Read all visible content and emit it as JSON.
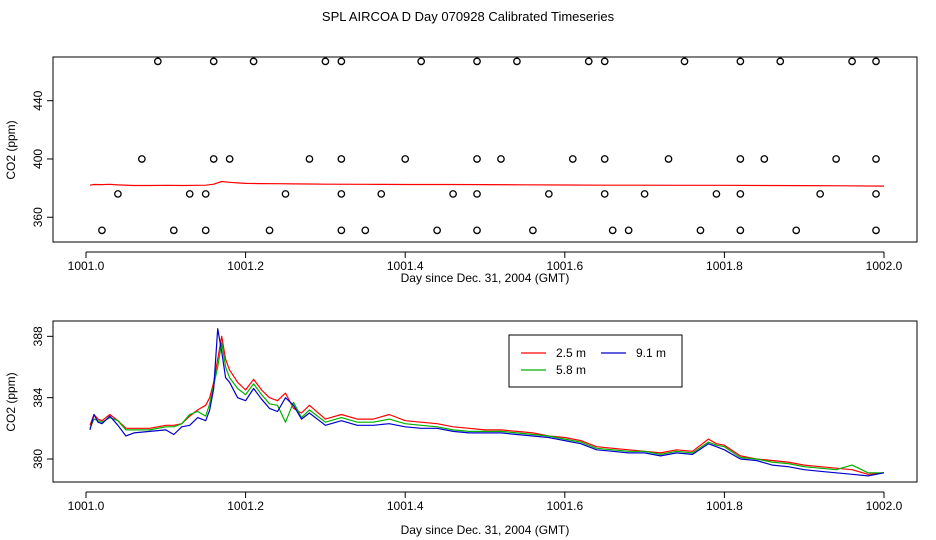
{
  "chart_data": [
    {
      "type": "scatter",
      "title": "SPL AIRCOA D  Day 070928  Calibrated Timeseries",
      "xlabel": "Day since Dec. 31, 2004 (GMT)",
      "ylabel": "CO2 (ppm)",
      "xlim": [
        1001.0,
        1002.0
      ],
      "ylim": [
        343,
        470
      ],
      "xticks": [
        1001.0,
        1001.2,
        1001.4,
        1001.6,
        1001.8,
        1002.0
      ],
      "xtick_labels": [
        "1001.0",
        "1001.2",
        "1001.4",
        "1001.6",
        "1001.8",
        "1002.0"
      ],
      "yticks": [
        360,
        400,
        440
      ],
      "ytick_labels": [
        "360",
        "400",
        "440"
      ],
      "points": [
        {
          "x": 1001.09,
          "y": 467
        },
        {
          "x": 1001.16,
          "y": 467
        },
        {
          "x": 1001.21,
          "y": 467
        },
        {
          "x": 1001.3,
          "y": 467
        },
        {
          "x": 1001.32,
          "y": 467
        },
        {
          "x": 1001.42,
          "y": 467
        },
        {
          "x": 1001.49,
          "y": 467
        },
        {
          "x": 1001.54,
          "y": 467
        },
        {
          "x": 1001.63,
          "y": 467
        },
        {
          "x": 1001.65,
          "y": 467
        },
        {
          "x": 1001.75,
          "y": 467
        },
        {
          "x": 1001.82,
          "y": 467
        },
        {
          "x": 1001.87,
          "y": 467
        },
        {
          "x": 1001.96,
          "y": 467
        },
        {
          "x": 1001.99,
          "y": 467
        },
        {
          "x": 1001.07,
          "y": 400
        },
        {
          "x": 1001.16,
          "y": 400
        },
        {
          "x": 1001.18,
          "y": 400
        },
        {
          "x": 1001.28,
          "y": 400
        },
        {
          "x": 1001.32,
          "y": 400
        },
        {
          "x": 1001.4,
          "y": 400
        },
        {
          "x": 1001.49,
          "y": 400
        },
        {
          "x": 1001.52,
          "y": 400
        },
        {
          "x": 1001.61,
          "y": 400
        },
        {
          "x": 1001.65,
          "y": 400
        },
        {
          "x": 1001.73,
          "y": 400
        },
        {
          "x": 1001.82,
          "y": 400
        },
        {
          "x": 1001.85,
          "y": 400
        },
        {
          "x": 1001.94,
          "y": 400
        },
        {
          "x": 1001.99,
          "y": 400
        },
        {
          "x": 1001.04,
          "y": 376
        },
        {
          "x": 1001.13,
          "y": 376
        },
        {
          "x": 1001.15,
          "y": 376
        },
        {
          "x": 1001.25,
          "y": 376
        },
        {
          "x": 1001.32,
          "y": 376
        },
        {
          "x": 1001.37,
          "y": 376
        },
        {
          "x": 1001.46,
          "y": 376
        },
        {
          "x": 1001.49,
          "y": 376
        },
        {
          "x": 1001.58,
          "y": 376
        },
        {
          "x": 1001.65,
          "y": 376
        },
        {
          "x": 1001.7,
          "y": 376
        },
        {
          "x": 1001.79,
          "y": 376
        },
        {
          "x": 1001.82,
          "y": 376
        },
        {
          "x": 1001.92,
          "y": 376
        },
        {
          "x": 1001.99,
          "y": 376
        },
        {
          "x": 1001.02,
          "y": 351
        },
        {
          "x": 1001.11,
          "y": 351
        },
        {
          "x": 1001.15,
          "y": 351
        },
        {
          "x": 1001.23,
          "y": 351
        },
        {
          "x": 1001.32,
          "y": 351
        },
        {
          "x": 1001.35,
          "y": 351
        },
        {
          "x": 1001.44,
          "y": 351
        },
        {
          "x": 1001.49,
          "y": 351
        },
        {
          "x": 1001.56,
          "y": 351
        },
        {
          "x": 1001.66,
          "y": 351
        },
        {
          "x": 1001.68,
          "y": 351
        },
        {
          "x": 1001.77,
          "y": 351
        },
        {
          "x": 1001.82,
          "y": 351
        },
        {
          "x": 1001.89,
          "y": 351
        },
        {
          "x": 1001.99,
          "y": 351
        }
      ],
      "series": [
        {
          "name": "2.5 m",
          "color": "#ff0000",
          "x": [
            1001.005,
            1001.01,
            1001.02,
            1001.03,
            1001.04,
            1001.06,
            1001.08,
            1001.1,
            1001.12,
            1001.14,
            1001.15,
            1001.16,
            1001.17,
            1001.18,
            1001.19,
            1001.2,
            1001.22,
            1001.24,
            1001.26,
            1001.28,
            1001.3,
            1001.35,
            1001.4,
            1001.45,
            1001.5,
            1001.55,
            1001.6,
            1001.65,
            1001.7,
            1001.75,
            1001.78,
            1001.8,
            1001.85,
            1001.9,
            1001.95,
            1002.0
          ],
          "y": [
            382.0,
            382.5,
            382.4,
            382.6,
            382.2,
            381.8,
            381.8,
            381.9,
            381.8,
            381.9,
            382.0,
            382.7,
            384.5,
            384.0,
            383.6,
            383.2,
            383.1,
            383.0,
            382.9,
            382.8,
            382.7,
            382.6,
            382.5,
            382.5,
            382.4,
            382.3,
            382.1,
            382.0,
            382.0,
            381.9,
            381.9,
            381.9,
            381.8,
            381.7,
            381.6,
            381.4
          ]
        }
      ]
    },
    {
      "type": "line",
      "title": "",
      "xlabel": "Day since Dec. 31, 2004 (GMT)",
      "ylabel": "CO2 (ppm)",
      "xlim": [
        1001.0,
        1002.0
      ],
      "ylim": [
        378.5,
        389.0
      ],
      "xticks": [
        1001.0,
        1001.2,
        1001.4,
        1001.6,
        1001.8,
        1002.0
      ],
      "xtick_labels": [
        "1001.0",
        "1001.2",
        "1001.4",
        "1001.6",
        "1001.8",
        "1002.0"
      ],
      "yticks": [
        380,
        384,
        388
      ],
      "ytick_labels": [
        "380",
        "384",
        "388"
      ],
      "legend": {
        "position": "top-right-center",
        "entries": [
          "2.5 m",
          "5.8 m",
          "9.1 m"
        ]
      },
      "x": [
        1001.005,
        1001.01,
        1001.015,
        1001.02,
        1001.03,
        1001.04,
        1001.05,
        1001.06,
        1001.08,
        1001.1,
        1001.11,
        1001.12,
        1001.13,
        1001.14,
        1001.15,
        1001.155,
        1001.16,
        1001.165,
        1001.17,
        1001.175,
        1001.18,
        1001.19,
        1001.2,
        1001.21,
        1001.22,
        1001.23,
        1001.24,
        1001.25,
        1001.26,
        1001.27,
        1001.28,
        1001.3,
        1001.32,
        1001.34,
        1001.36,
        1001.38,
        1001.4,
        1001.42,
        1001.44,
        1001.46,
        1001.48,
        1001.5,
        1001.52,
        1001.54,
        1001.56,
        1001.58,
        1001.6,
        1001.62,
        1001.64,
        1001.66,
        1001.68,
        1001.7,
        1001.72,
        1001.74,
        1001.76,
        1001.78,
        1001.79,
        1001.8,
        1001.82,
        1001.84,
        1001.86,
        1001.88,
        1001.9,
        1001.92,
        1001.94,
        1001.96,
        1001.98,
        1002.0
      ],
      "series": [
        {
          "name": "2.5 m",
          "color": "#ff0000",
          "values": [
            382.2,
            382.9,
            382.6,
            382.5,
            382.9,
            382.5,
            382.0,
            382.0,
            382.0,
            382.2,
            382.2,
            382.3,
            382.8,
            383.2,
            383.5,
            384.0,
            385.0,
            386.5,
            388.0,
            386.5,
            385.8,
            385.0,
            384.5,
            385.2,
            384.5,
            384.0,
            383.8,
            384.3,
            383.3,
            383.0,
            383.5,
            382.6,
            382.9,
            382.6,
            382.6,
            382.9,
            382.5,
            382.4,
            382.3,
            382.1,
            382.0,
            381.9,
            381.9,
            381.8,
            381.7,
            381.5,
            381.4,
            381.2,
            380.8,
            380.7,
            380.6,
            380.5,
            380.4,
            380.6,
            380.5,
            381.3,
            381.0,
            380.9,
            380.2,
            380.0,
            379.9,
            379.8,
            379.6,
            379.5,
            379.4,
            379.3,
            379.0,
            379.1
          ]
        },
        {
          "name": "5.8 m",
          "color": "#00b000",
          "values": [
            382.0,
            382.6,
            382.5,
            382.4,
            382.7,
            382.5,
            381.9,
            381.9,
            381.9,
            382.1,
            382.1,
            382.3,
            382.9,
            383.1,
            382.8,
            383.6,
            384.8,
            386.0,
            387.6,
            386.0,
            385.3,
            384.6,
            384.2,
            384.9,
            384.2,
            383.6,
            383.5,
            382.4,
            383.7,
            382.7,
            383.2,
            382.4,
            382.7,
            382.4,
            382.4,
            382.6,
            382.3,
            382.2,
            382.1,
            381.9,
            381.8,
            381.8,
            381.8,
            381.7,
            381.6,
            381.5,
            381.3,
            381.1,
            380.7,
            380.6,
            380.5,
            380.5,
            380.3,
            380.5,
            380.4,
            381.1,
            380.9,
            380.8,
            380.1,
            380.0,
            379.8,
            379.7,
            379.5,
            379.4,
            379.3,
            379.6,
            379.1,
            379.1
          ]
        },
        {
          "name": "9.1 m",
          "color": "#0000cc",
          "values": [
            381.9,
            382.9,
            382.4,
            382.3,
            382.8,
            382.2,
            381.5,
            381.7,
            381.8,
            381.9,
            381.6,
            382.1,
            382.2,
            382.7,
            382.5,
            383.2,
            384.6,
            388.5,
            387.0,
            385.3,
            385.0,
            384.0,
            383.8,
            384.6,
            383.9,
            383.3,
            383.1,
            384.0,
            383.5,
            382.6,
            383.0,
            382.2,
            382.5,
            382.2,
            382.2,
            382.3,
            382.1,
            382.0,
            382.0,
            381.8,
            381.7,
            381.7,
            381.7,
            381.6,
            381.5,
            381.4,
            381.2,
            381.0,
            380.6,
            380.5,
            380.4,
            380.4,
            380.2,
            380.4,
            380.3,
            381.0,
            380.8,
            380.6,
            380.0,
            379.9,
            379.6,
            379.5,
            379.3,
            379.2,
            379.1,
            379.0,
            378.9,
            379.1
          ]
        }
      ]
    }
  ]
}
